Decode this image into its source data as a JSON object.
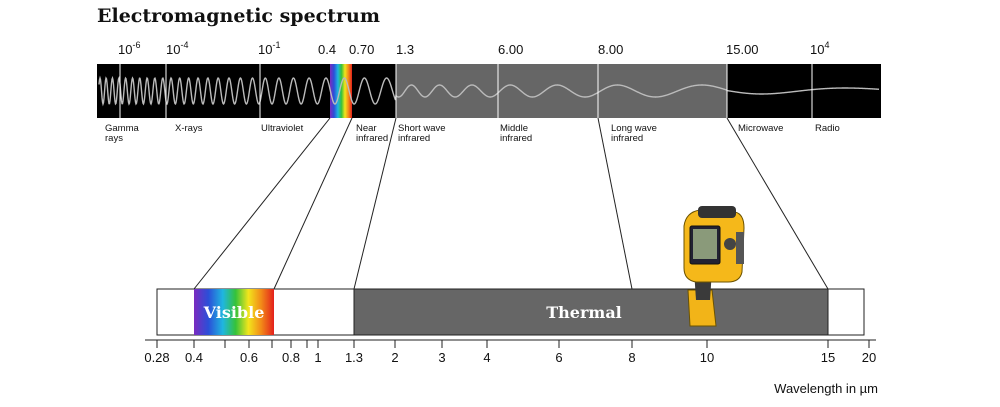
{
  "title": "Electromagnetic spectrum",
  "top_scale": [
    {
      "base": "10",
      "exp": "-6"
    },
    {
      "base": "10",
      "exp": "-4"
    },
    {
      "base": "10",
      "exp": "-1"
    },
    {
      "text": "0.4"
    },
    {
      "text": "0.70"
    },
    {
      "text": "1.3"
    },
    {
      "text": "6.00"
    },
    {
      "text": "8.00"
    },
    {
      "text": "15.00"
    },
    {
      "base": "10",
      "exp": "4"
    }
  ],
  "bands": [
    {
      "lines": [
        "Gamma",
        "rays"
      ]
    },
    {
      "lines": [
        "X-rays"
      ]
    },
    {
      "lines": [
        "Ultraviolet"
      ]
    },
    {
      "lines": [
        "Near",
        "infrared"
      ]
    },
    {
      "lines": [
        "Short wave",
        "infrared"
      ]
    },
    {
      "lines": [
        "Middle",
        "infrared"
      ]
    },
    {
      "lines": [
        "Long wave",
        "infrared"
      ]
    },
    {
      "lines": [
        "Microwave"
      ]
    },
    {
      "lines": [
        "Radio"
      ]
    }
  ],
  "visible_label": "Visible",
  "thermal_label": "Thermal",
  "wavelength_ticks": [
    "0.28",
    "0.4",
    "0.6",
    "0.8",
    "1",
    "1.3",
    "2",
    "3",
    "4",
    "6",
    "8",
    "10",
    "15",
    "20"
  ],
  "axis_label": "Wavelength in µm"
}
